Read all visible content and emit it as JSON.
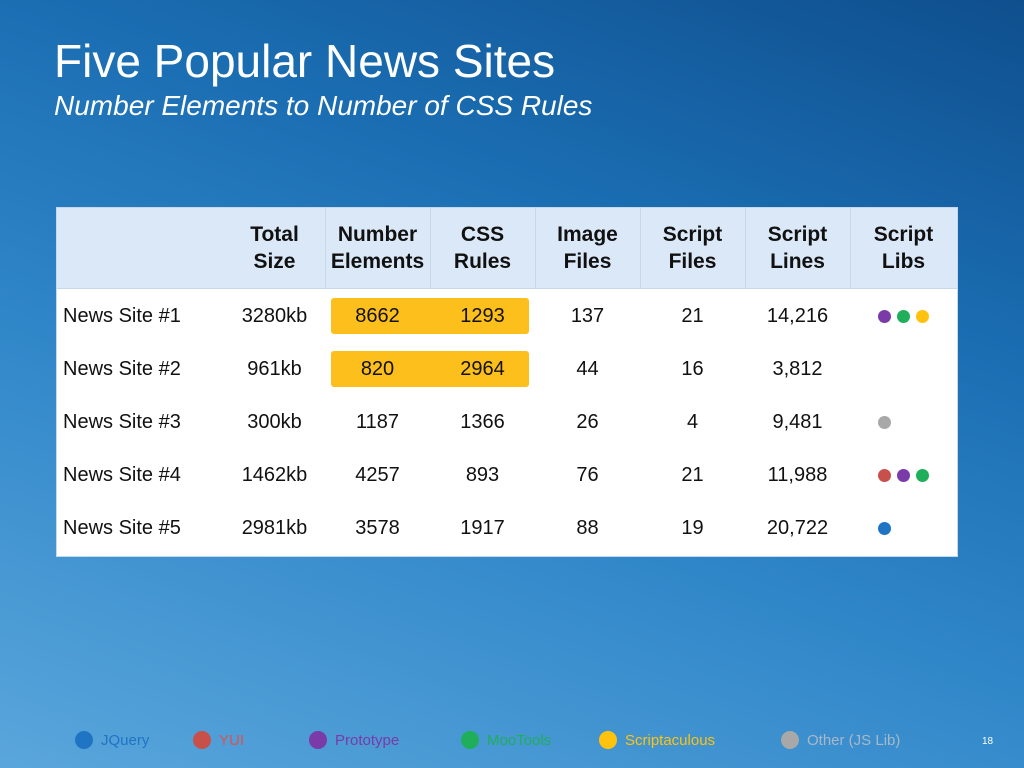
{
  "slide": {
    "title": "Five Popular News Sites",
    "subtitle": "Number Elements to Number of CSS Rules",
    "page_number": "18"
  },
  "table": {
    "headers": [
      "",
      "Total\nSize",
      "Number\nElements",
      "CSS\nRules",
      "Image\nFiles",
      "Script\nFiles",
      "Script\nLines",
      "Script\nLibs"
    ],
    "rows": [
      {
        "name": "News Site #1",
        "total_size": "3280kb",
        "elements": "8662",
        "css_rules": "1293",
        "image_files": "137",
        "script_files": "21",
        "script_lines": "14,216",
        "libs": [
          "prototype",
          "mootools",
          "scriptaculous"
        ],
        "highlight": true
      },
      {
        "name": "News Site #2",
        "total_size": "961kb",
        "elements": "820",
        "css_rules": "2964",
        "image_files": "44",
        "script_files": "16",
        "script_lines": "3,812",
        "libs": [],
        "highlight": true
      },
      {
        "name": "News Site #3",
        "total_size": "300kb",
        "elements": "1187",
        "css_rules": "1366",
        "image_files": "26",
        "script_files": "4",
        "script_lines": "9,481",
        "libs": [
          "other"
        ],
        "highlight": false
      },
      {
        "name": "News Site #4",
        "total_size": "1462kb",
        "elements": "4257",
        "css_rules": "893",
        "image_files": "76",
        "script_files": "21",
        "script_lines": "11,988",
        "libs": [
          "yui",
          "prototype",
          "mootools"
        ],
        "highlight": false
      },
      {
        "name": "News Site #5",
        "total_size": "2981kb",
        "elements": "3578",
        "css_rules": "1917",
        "image_files": "88",
        "script_files": "19",
        "script_lines": "20,722",
        "libs": [
          "jquery"
        ],
        "highlight": false
      }
    ]
  },
  "legend": [
    {
      "key": "jquery",
      "label": "JQuery",
      "color": "#1f74c4",
      "text_color": "#1f74c4"
    },
    {
      "key": "yui",
      "label": "YUI",
      "color": "#c8504b",
      "text_color": "#d9534f"
    },
    {
      "key": "prototype",
      "label": "Prototype",
      "color": "#7a3aa8",
      "text_color": "#7a3aa8"
    },
    {
      "key": "mootools",
      "label": "MooTools",
      "color": "#1fae5a",
      "text_color": "#1fae5a"
    },
    {
      "key": "scriptaculous",
      "label": "Scriptaculous",
      "color": "#ffc20e",
      "text_color": "#ffc20e"
    },
    {
      "key": "other",
      "label": "Other (JS Lib)",
      "color": "#a8a8a8",
      "text_color": "#a8b8c8"
    }
  ],
  "colors": {
    "highlight": "#fdbf1b",
    "header_bg": "#dbe8f7"
  }
}
